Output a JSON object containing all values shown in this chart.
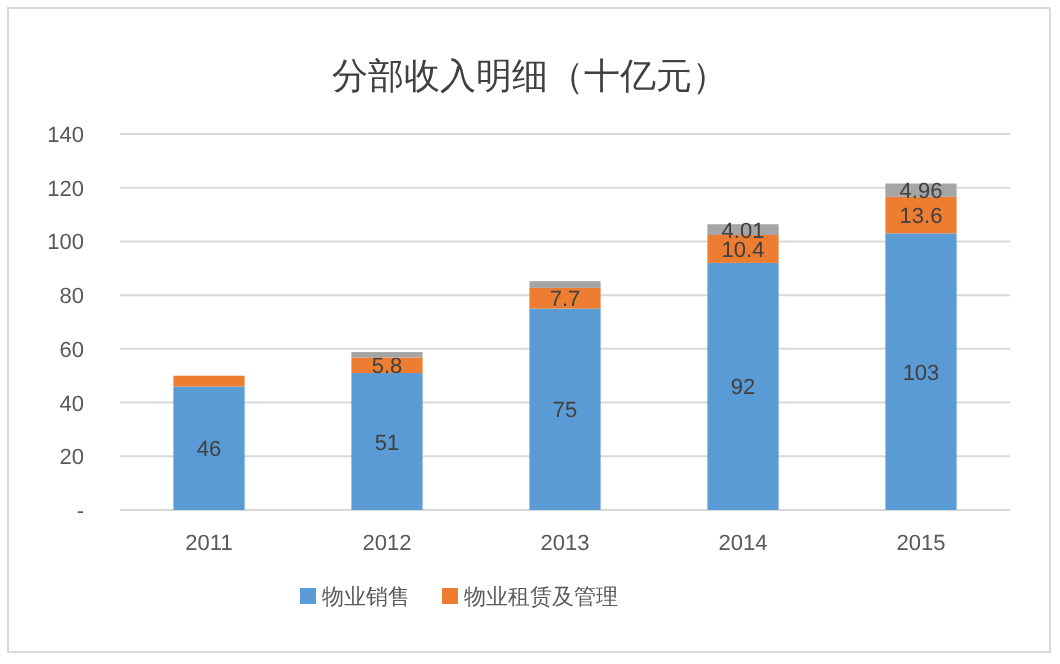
{
  "chart_data": {
    "type": "bar",
    "title": "分部收入明细（十亿元）",
    "stacked": true,
    "categories": [
      "2011",
      "2012",
      "2013",
      "2014",
      "2015"
    ],
    "series": [
      {
        "name": "物业销售",
        "color": "#5b9bd5",
        "values": [
          46,
          51,
          75,
          92,
          103
        ],
        "value_labels": [
          "46",
          "51",
          "75",
          "92",
          "103"
        ]
      },
      {
        "name": "物业租赁及管理",
        "color": "#ed7d31",
        "values": [
          4,
          5.8,
          7.7,
          10.4,
          13.6
        ],
        "value_labels": [
          null,
          "5.8",
          "7.7",
          "10.4",
          "13.6"
        ]
      },
      {
        "color": "#a5a5a5",
        "values": [
          null,
          2,
          2.5,
          4.01,
          4.96
        ],
        "value_labels": [
          null,
          null,
          null,
          "4.01",
          "4.96"
        ]
      }
    ],
    "ylim": [
      0,
      140
    ],
    "yticks": [
      {
        "value": 0,
        "label": "-"
      },
      20,
      40,
      60,
      80,
      100,
      120,
      140
    ],
    "grid": "y",
    "legend": "bottom"
  }
}
